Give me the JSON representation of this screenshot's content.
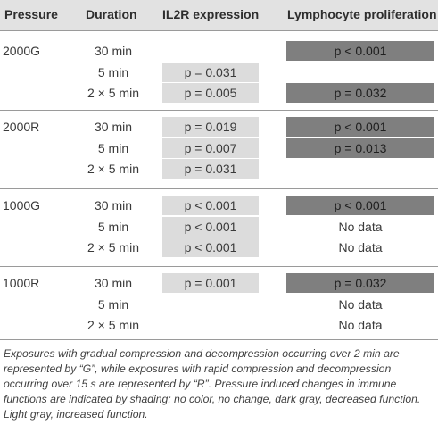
{
  "headers": [
    "Pressure",
    "Duration",
    "IL2R expression",
    "Lymphocyte proliferation"
  ],
  "groups": [
    {
      "pressure": "2000G",
      "rows": [
        {
          "duration": "30 min",
          "il2r": "",
          "lymph": "p < 0.001",
          "lymph_shade": "dark"
        },
        {
          "duration": "5 min",
          "il2r": "p = 0.031",
          "il2r_shade": "light",
          "lymph": ""
        },
        {
          "duration": "2 × 5 min",
          "il2r": "p = 0.005",
          "il2r_shade": "light",
          "lymph": "p = 0.032",
          "lymph_shade": "dark"
        }
      ]
    },
    {
      "pressure": "2000R",
      "rows": [
        {
          "duration": "30 min",
          "il2r": "p = 0.019",
          "il2r_shade": "light",
          "lymph": "p < 0.001",
          "lymph_shade": "dark"
        },
        {
          "duration": "5 min",
          "il2r": "p = 0.007",
          "il2r_shade": "light",
          "lymph": "p = 0.013",
          "lymph_shade": "dark"
        },
        {
          "duration": "2 × 5 min",
          "il2r": "p = 0.031",
          "il2r_shade": "light",
          "lymph": ""
        }
      ]
    },
    {
      "pressure": "1000G",
      "rows": [
        {
          "duration": "30 min",
          "il2r": "p < 0.001",
          "il2r_shade": "light",
          "lymph": "p < 0.001",
          "lymph_shade": "dark"
        },
        {
          "duration": "5 min",
          "il2r": "p < 0.001",
          "il2r_shade": "light",
          "lymph": "No data"
        },
        {
          "duration": "2 × 5 min",
          "il2r": "p < 0.001",
          "il2r_shade": "light",
          "lymph": "No data"
        }
      ]
    },
    {
      "pressure": "1000R",
      "rows": [
        {
          "duration": "30 min",
          "il2r": "p = 0.001",
          "il2r_shade": "light",
          "lymph": "p = 0.032",
          "lymph_shade": "dark"
        },
        {
          "duration": "5 min",
          "il2r": "",
          "lymph": "No data"
        },
        {
          "duration": "2 × 5 min",
          "il2r": "",
          "lymph": "No data"
        }
      ]
    }
  ],
  "footnote": "Exposures with gradual compression and decompression occurring over 2 min are represented by “G”, while exposures with rapid compression and decompression occurring over 15 s are represented by “R”. Pressure induced changes in immune functions are indicated by shading; no color, no change, dark gray, decreased function. Light gray, increased function.",
  "colors": {
    "header_bg": "#e2e2e2",
    "light_gray": "#dcdcdc",
    "dark_gray": "#7f7f7f"
  }
}
